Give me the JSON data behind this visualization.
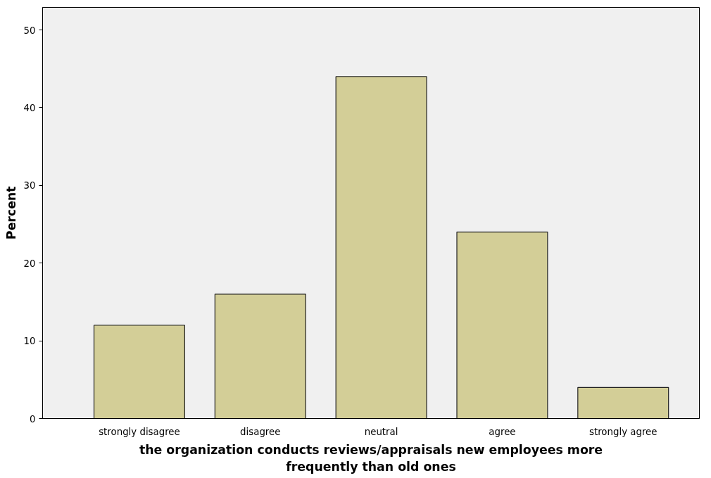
{
  "chart_data": {
    "type": "bar",
    "xlabel": "the organization conducts reviews/appraisals new employees more frequently than old ones",
    "ylabel": "Percent",
    "categories": [
      "strongly disagree",
      "disagree",
      "neutral",
      "agree",
      "strongly agree"
    ],
    "values": [
      12,
      16,
      44,
      24,
      4
    ],
    "color": "#d3ce97",
    "ylim": [
      0,
      52.9
    ],
    "yticks": [
      0,
      10,
      20,
      30,
      40,
      50
    ],
    "grid": false
  }
}
